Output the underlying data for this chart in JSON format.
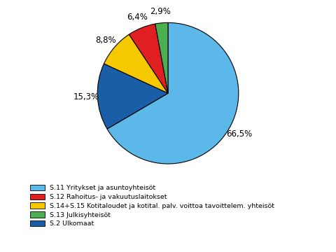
{
  "legend_labels": [
    "S.11 Yritykset ja asuntoyhteisöt",
    "S.12 Rahoitus- ja vakuutuslaitokset",
    "S.14+S.15 Kotitaloudet ja kotital. palv. voittoa tavoittelem. yhteisöt",
    "S.13 Julkisyhteisöt",
    "S.2 Ulkomaat"
  ],
  "plot_values": [
    66.5,
    15.3,
    8.8,
    6.4,
    2.9
  ],
  "plot_colors": [
    "#5BB8E8",
    "#1A5EA8",
    "#F5C800",
    "#E02020",
    "#4CAF50"
  ],
  "legend_colors": [
    "#5BB8E8",
    "#E02020",
    "#F5C800",
    "#4CAF50",
    "#1A5EA8"
  ],
  "plot_pcts": [
    "66,5%",
    "15,3%",
    "8,8%",
    "6,4%",
    "2,9%"
  ],
  "figsize": [
    4.8,
    3.6
  ],
  "dpi": 100
}
